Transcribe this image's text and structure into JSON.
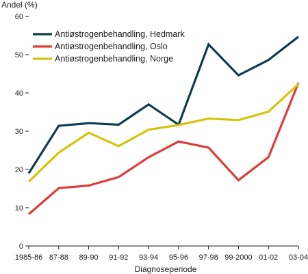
{
  "chart_data": {
    "type": "line",
    "ylabel": "Andel (%)",
    "xlabel": "Diagnoseperiode",
    "categories": [
      "1985-86",
      "87-88",
      "89-90",
      "91-92",
      "93-94",
      "95-96",
      "97-98",
      "99-2000",
      "01-02",
      "03-04"
    ],
    "ylim": [
      0,
      60
    ],
    "yticks": [
      0,
      10,
      20,
      30,
      40,
      50,
      60
    ],
    "grid": false,
    "legend_position": "top-left",
    "series": [
      {
        "name": "Antiøstrogenbehandling, Hedmark",
        "color": "#0d3b4f",
        "values": [
          19.0,
          31.4,
          32.1,
          31.7,
          37.0,
          31.7,
          52.7,
          44.6,
          48.6,
          54.7
        ]
      },
      {
        "name": "Antiøstrogenbehandling, Oslo",
        "color": "#e03a3a",
        "values": [
          8.3,
          15.1,
          15.8,
          18.0,
          23.2,
          27.3,
          25.7,
          17.2,
          23.2,
          42.6
        ]
      },
      {
        "name": "Antiøstrogenbehandling, Norge",
        "color": "#d4c40a",
        "values": [
          16.8,
          24.4,
          29.6,
          26.1,
          30.4,
          31.6,
          33.3,
          32.9,
          35.1,
          42.3
        ]
      }
    ]
  }
}
